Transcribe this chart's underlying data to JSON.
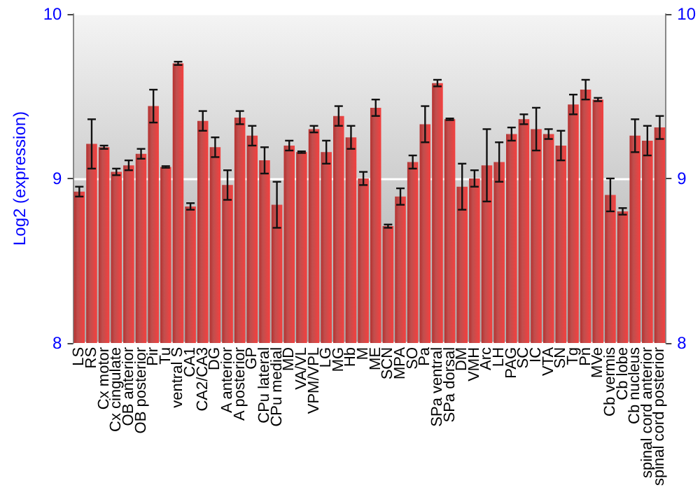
{
  "chart_data": {
    "type": "bar",
    "ylabel": "Log2 (expression)",
    "categories": [
      "LS",
      "RS",
      "Cx motor",
      "Cx cingulate",
      "OB anterior",
      "OB posterior",
      "Pir",
      "Tu",
      "ventral S",
      "CA1",
      "CA2/CA3",
      "DG",
      "A anterior",
      "A posterior",
      "GP",
      "CPu lateral",
      "CPu medial",
      "MD",
      "VA/VL",
      "VPM/VPL",
      "LG",
      "MG",
      "Hb",
      "M",
      "ME",
      "SCN",
      "MPA",
      "SO",
      "Pa",
      "SPa ventral",
      "SPa dorsal",
      "DM",
      "VMH",
      "Arc",
      "LH",
      "PAG",
      "SC",
      "IC",
      "VTA",
      "SN",
      "Tg",
      "Pn",
      "MVe",
      "Cb vermis",
      "Cb lobe",
      "Cb nucleus",
      "spinal cord anterior",
      "spinal cord posterior"
    ],
    "series": [
      {
        "color": "#b5302f",
        "values": [
          8.92,
          9.21,
          9.19,
          9.04,
          9.08,
          9.15,
          9.44,
          9.07,
          9.7,
          8.83,
          9.35,
          9.19,
          8.96,
          9.37,
          9.26,
          9.11,
          8.84,
          9.2,
          9.16,
          9.3,
          9.16,
          9.38,
          9.25,
          9.0,
          9.43,
          8.71,
          8.89,
          9.1,
          9.33,
          9.58,
          9.36,
          8.95,
          9.0,
          9.08,
          9.1,
          9.27,
          9.36,
          9.3,
          9.27,
          9.2,
          9.45,
          9.54,
          9.48,
          8.9,
          8.8,
          9.26,
          9.23,
          9.31
        ],
        "errors": [
          0.03,
          0.15,
          0.01,
          0.02,
          0.03,
          0.03,
          0.1,
          0.005,
          0.01,
          0.02,
          0.06,
          0.06,
          0.09,
          0.04,
          0.06,
          0.08,
          0.14,
          0.03,
          0.005,
          0.02,
          0.07,
          0.06,
          0.07,
          0.04,
          0.05,
          0.01,
          0.05,
          0.04,
          0.11,
          0.02,
          0.005,
          0.14,
          0.05,
          0.22,
          0.12,
          0.04,
          0.03,
          0.13,
          0.03,
          0.09,
          0.06,
          0.06,
          0.01,
          0.1,
          0.02,
          0.1,
          0.09,
          0.07
        ]
      }
    ],
    "ylim": [
      8,
      10
    ],
    "yticks": [
      8,
      9,
      10
    ],
    "y2lim": [
      8,
      10
    ],
    "y2ticks": [
      8,
      9,
      10
    ],
    "grid": "y"
  }
}
